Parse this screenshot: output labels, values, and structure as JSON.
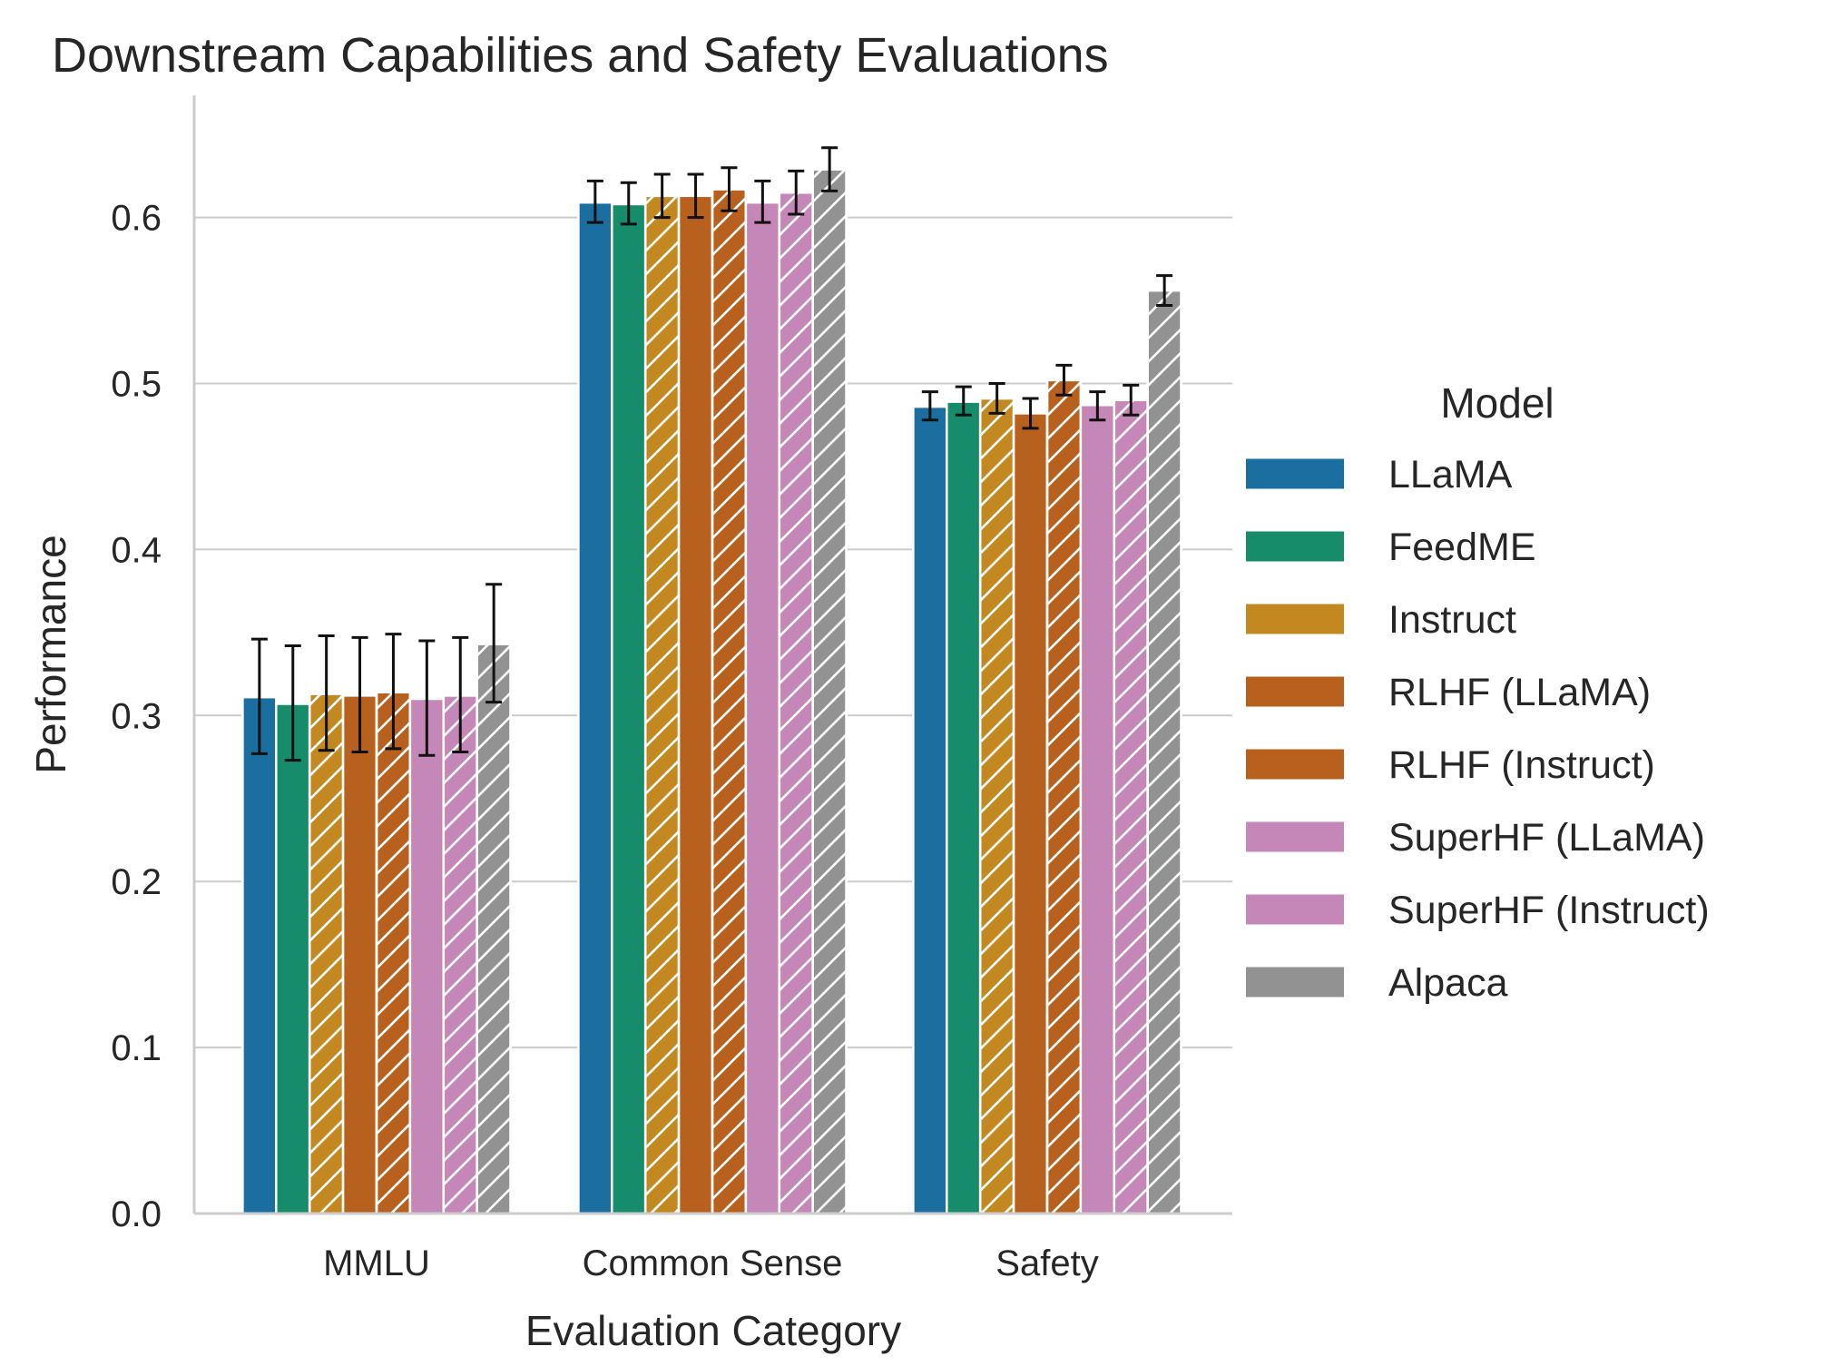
{
  "chart_data": {
    "type": "bar",
    "title": "Downstream Capabilities and Safety Evaluations",
    "xlabel": "Evaluation Category",
    "ylabel": "Performance",
    "ylim": [
      0,
      0.67
    ],
    "yticks": [
      "0.0",
      "0.1",
      "0.2",
      "0.3",
      "0.4",
      "0.5",
      "0.6"
    ],
    "grid": "horizontal",
    "categories": [
      "MMLU",
      "Common Sense",
      "Safety"
    ],
    "legend": {
      "title": "Model",
      "placement": "right"
    },
    "series": [
      {
        "name": "LLaMA",
        "color": "#1a6fa0",
        "hatched": false,
        "values": [
          0.311,
          0.609,
          0.486
        ],
        "errors": [
          [
            0.277,
            0.346
          ],
          [
            0.597,
            0.622
          ],
          [
            0.478,
            0.495
          ]
        ]
      },
      {
        "name": "FeedME",
        "color": "#178c6b",
        "hatched": false,
        "values": [
          0.307,
          0.608,
          0.489
        ],
        "errors": [
          [
            0.273,
            0.342
          ],
          [
            0.596,
            0.621
          ],
          [
            0.481,
            0.498
          ]
        ]
      },
      {
        "name": "Instruct",
        "color": "#c38820",
        "hatched": true,
        "values": [
          0.313,
          0.613,
          0.491
        ],
        "errors": [
          [
            0.279,
            0.348
          ],
          [
            0.6,
            0.626
          ],
          [
            0.482,
            0.5
          ]
        ]
      },
      {
        "name": "RLHF (LLaMA)",
        "color": "#b8601d",
        "hatched": false,
        "values": [
          0.312,
          0.613,
          0.482
        ],
        "errors": [
          [
            0.278,
            0.347
          ],
          [
            0.6,
            0.626
          ],
          [
            0.473,
            0.491
          ]
        ]
      },
      {
        "name": "RLHF (Instruct)",
        "color": "#b8601d",
        "hatched": true,
        "values": [
          0.314,
          0.617,
          0.502
        ],
        "errors": [
          [
            0.28,
            0.349
          ],
          [
            0.604,
            0.63
          ],
          [
            0.493,
            0.511
          ]
        ]
      },
      {
        "name": "SuperHF (LLaMA)",
        "color": "#c586b8",
        "hatched": false,
        "values": [
          0.31,
          0.609,
          0.487
        ],
        "errors": [
          [
            0.276,
            0.345
          ],
          [
            0.597,
            0.622
          ],
          [
            0.478,
            0.495
          ]
        ]
      },
      {
        "name": "SuperHF (Instruct)",
        "color": "#c586b8",
        "hatched": true,
        "values": [
          0.312,
          0.615,
          0.49
        ],
        "errors": [
          [
            0.278,
            0.347
          ],
          [
            0.602,
            0.628
          ],
          [
            0.481,
            0.499
          ]
        ]
      },
      {
        "name": "Alpaca",
        "color": "#929292",
        "hatched": true,
        "values": [
          0.343,
          0.629,
          0.556
        ],
        "errors": [
          [
            0.308,
            0.379
          ],
          [
            0.616,
            0.642
          ],
          [
            0.547,
            0.565
          ]
        ]
      }
    ]
  }
}
